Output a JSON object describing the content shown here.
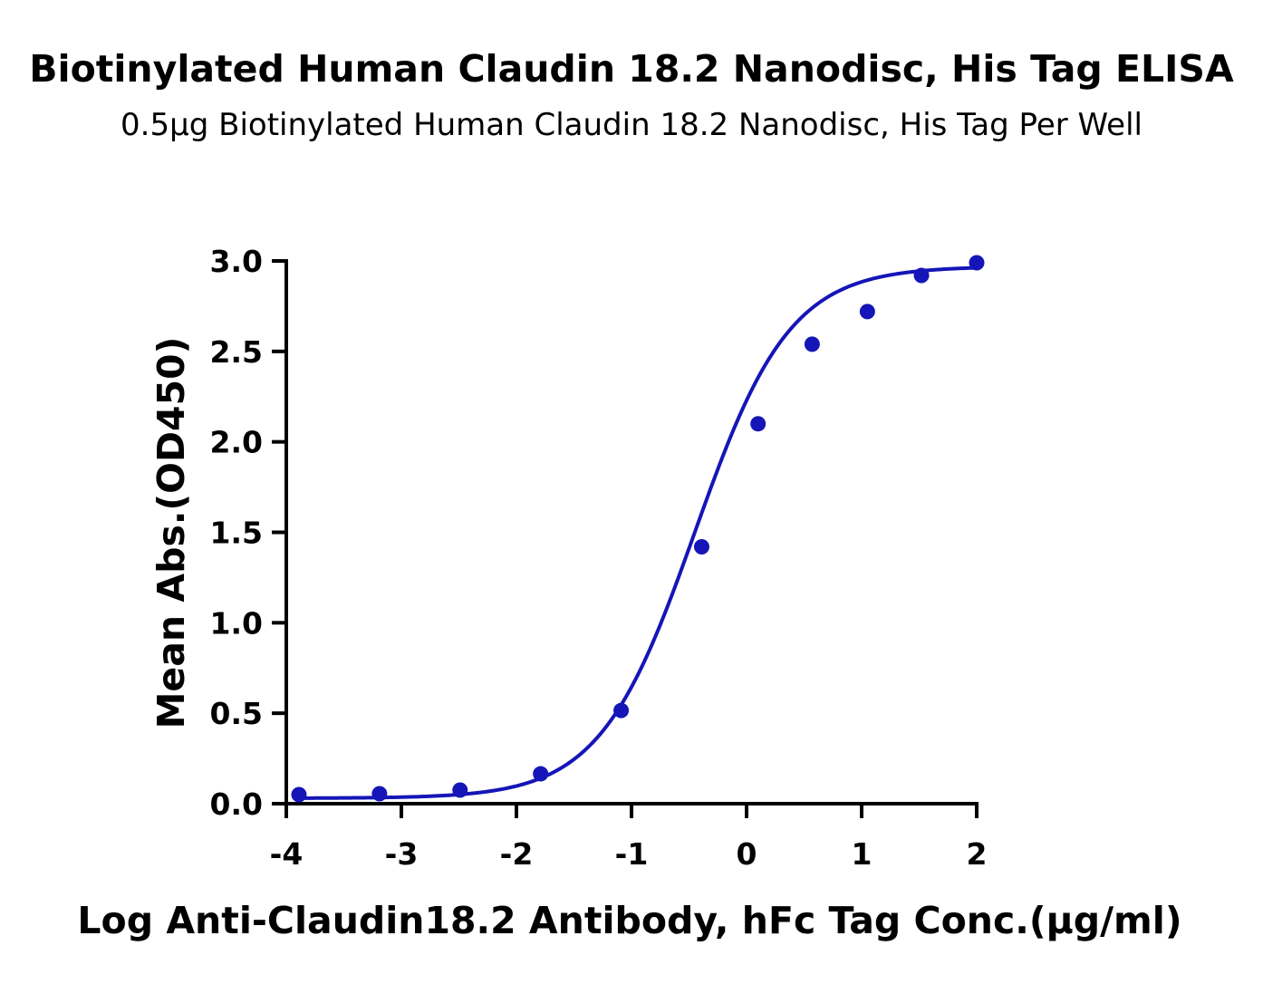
{
  "chart_data": {
    "type": "scatter",
    "title": "Biotinylated Human Claudin 18.2 Nanodisc, His Tag ELISA",
    "subtitle": "0.5µg Biotinylated Human Claudin 18.2 Nanodisc, His Tag Per Well",
    "xlabel": "Log Anti-Claudin18.2 Antibody, hFc Tag Conc.(µg/ml)",
    "ylabel": "Mean Abs.(OD450)",
    "xlim": [
      -4,
      2
    ],
    "ylim": [
      0,
      3
    ],
    "x_ticks": [
      "-4",
      "-3",
      "-2",
      "-1",
      "0",
      "1",
      "2"
    ],
    "y_ticks": [
      "0.0",
      "0.5",
      "1.0",
      "1.5",
      "2.0",
      "2.5",
      "3.0"
    ],
    "series": [
      {
        "color": "#1515b8",
        "x": [
          -3.89,
          -3.19,
          -2.49,
          -1.79,
          -1.09,
          -0.39,
          0.1,
          0.57,
          1.05,
          1.52,
          2.0
        ],
        "y": [
          0.05,
          0.055,
          0.075,
          0.165,
          0.515,
          1.42,
          2.1,
          2.54,
          2.72,
          2.92,
          2.99
        ]
      }
    ],
    "fit": {
      "type": "4PL",
      "bottom": 0.03,
      "top": 2.97,
      "logEC50": -0.45,
      "hill": 1.05
    },
    "grid": false
  }
}
